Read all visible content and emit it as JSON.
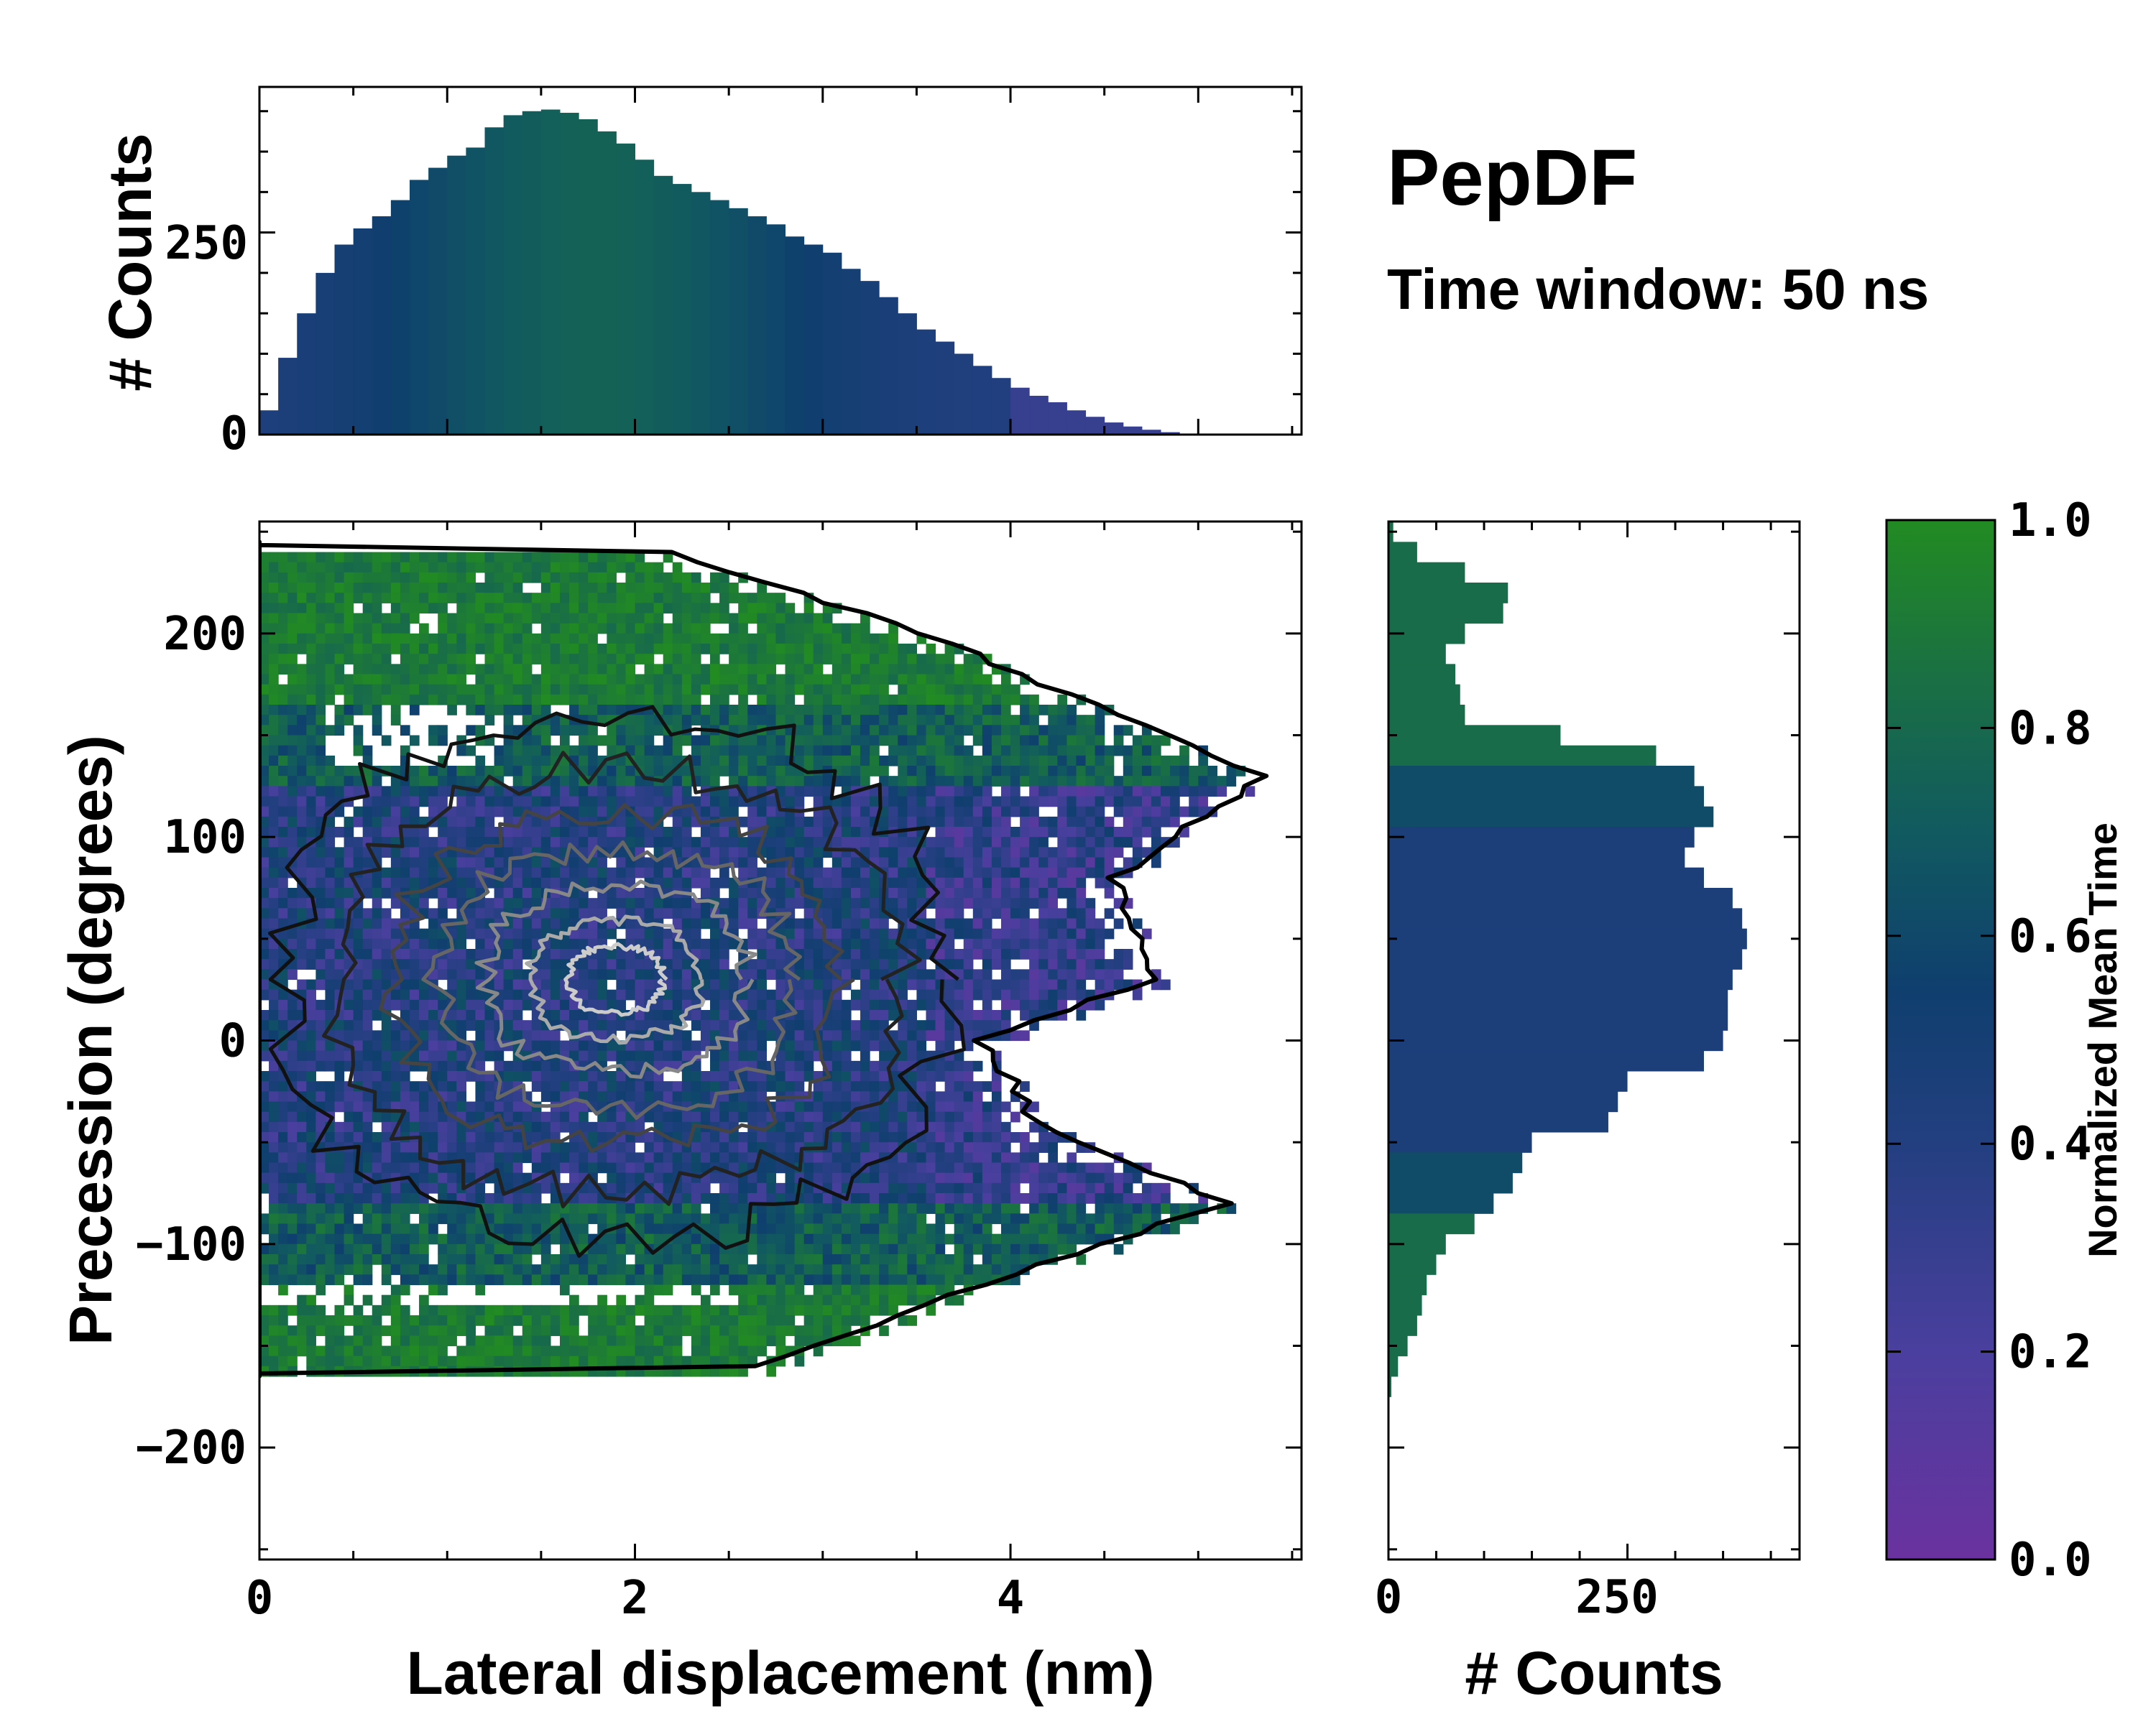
{
  "title": "PepDF",
  "subtitle": "Time window: 50 ns",
  "chart_data": [
    {
      "name": "top-histogram",
      "type": "bar",
      "xlabel": "",
      "ylabel": "# Counts",
      "xlim": [
        0,
        5.55
      ],
      "ylim": [
        0,
        430
      ],
      "yticks": [
        0,
        250
      ],
      "bins_x": [
        0.05,
        0.15,
        0.25,
        0.35,
        0.45,
        0.55,
        0.65,
        0.75,
        0.85,
        0.95,
        1.05,
        1.15,
        1.25,
        1.35,
        1.45,
        1.55,
        1.65,
        1.75,
        1.85,
        1.95,
        2.05,
        2.15,
        2.25,
        2.35,
        2.45,
        2.55,
        2.65,
        2.75,
        2.85,
        2.95,
        3.05,
        3.15,
        3.25,
        3.35,
        3.45,
        3.55,
        3.65,
        3.75,
        3.85,
        3.95,
        4.05,
        4.15,
        4.25,
        4.35,
        4.45,
        4.55,
        4.65,
        4.75,
        4.85,
        4.95,
        5.05,
        5.15,
        5.25,
        5.35
      ],
      "values": [
        30,
        95,
        150,
        200,
        235,
        255,
        270,
        290,
        315,
        330,
        345,
        355,
        380,
        395,
        400,
        402,
        398,
        390,
        375,
        360,
        340,
        320,
        310,
        300,
        290,
        280,
        270,
        260,
        245,
        235,
        225,
        205,
        190,
        170,
        150,
        130,
        115,
        100,
        85,
        70,
        58,
        48,
        40,
        30,
        22,
        15,
        10,
        6,
        3,
        1,
        0,
        0,
        0,
        0
      ],
      "colorscale_by_normalized_mean_time": true
    },
    {
      "name": "main-2d-histogram",
      "type": "heatmap",
      "xlabel": "Lateral displacement (nm)",
      "ylabel": "Precession (degrees)",
      "xlim": [
        0,
        5.55
      ],
      "ylim": [
        -255,
        255
      ],
      "xticks": [
        0,
        2,
        4
      ],
      "yticks": [
        -200,
        -100,
        0,
        100,
        200
      ],
      "ytick_labels": [
        "−200",
        "−100",
        "0",
        "100",
        "200"
      ],
      "color_encodes": "Normalized Mean Time",
      "density_peak_x": 1.9,
      "density_peak_y": 30,
      "occupied_region": {
        "x_max_by_angle": [
          {
            "y": 240,
            "x_max": 2.2
          },
          {
            "y": 200,
            "x_max": 3.6
          },
          {
            "y": 130,
            "x_max": 5.4
          },
          {
            "y": 80,
            "x_max": 4.6
          },
          {
            "y": 30,
            "x_max": 4.8
          },
          {
            "y": 0,
            "x_max": 3.9
          },
          {
            "y": -40,
            "x_max": 4.2
          },
          {
            "y": -80,
            "x_max": 5.2
          },
          {
            "y": -120,
            "x_max": 3.9
          },
          {
            "y": -160,
            "x_max": 2.7
          }
        ]
      }
    },
    {
      "name": "right-histogram",
      "type": "bar",
      "orientation": "horizontal",
      "xlabel": "# Counts",
      "ylabel": "",
      "xlim": [
        0,
        430
      ],
      "ylim": [
        -255,
        255
      ],
      "xticks": [
        0,
        250
      ],
      "bins_y": [
        250,
        240,
        230,
        220,
        210,
        200,
        190,
        180,
        170,
        160,
        150,
        140,
        130,
        120,
        110,
        100,
        90,
        80,
        70,
        60,
        50,
        40,
        30,
        20,
        10,
        0,
        -10,
        -20,
        -30,
        -40,
        -50,
        -60,
        -70,
        -80,
        -90,
        -100,
        -110,
        -120,
        -130,
        -140,
        -150,
        -160,
        -170,
        -180
      ],
      "values": [
        5,
        30,
        80,
        125,
        120,
        80,
        60,
        70,
        75,
        80,
        180,
        280,
        320,
        330,
        340,
        320,
        310,
        330,
        360,
        370,
        375,
        370,
        360,
        355,
        355,
        350,
        330,
        250,
        240,
        230,
        150,
        140,
        130,
        110,
        90,
        60,
        50,
        40,
        35,
        30,
        20,
        10,
        3,
        0
      ],
      "colorscale_by_normalized_mean_time": true
    },
    {
      "name": "colorbar",
      "type": "colorbar",
      "label": "Normalized Mean Time",
      "range": [
        0.0,
        1.0
      ],
      "ticks": [
        "0.0",
        "0.2",
        "0.4",
        "0.6",
        "0.8",
        "1.0"
      ],
      "colors": [
        "#6a329f",
        "#3c4a9e",
        "#1d3f7d",
        "#0f4a6e",
        "#1a6a4e",
        "#228b22"
      ]
    }
  ]
}
